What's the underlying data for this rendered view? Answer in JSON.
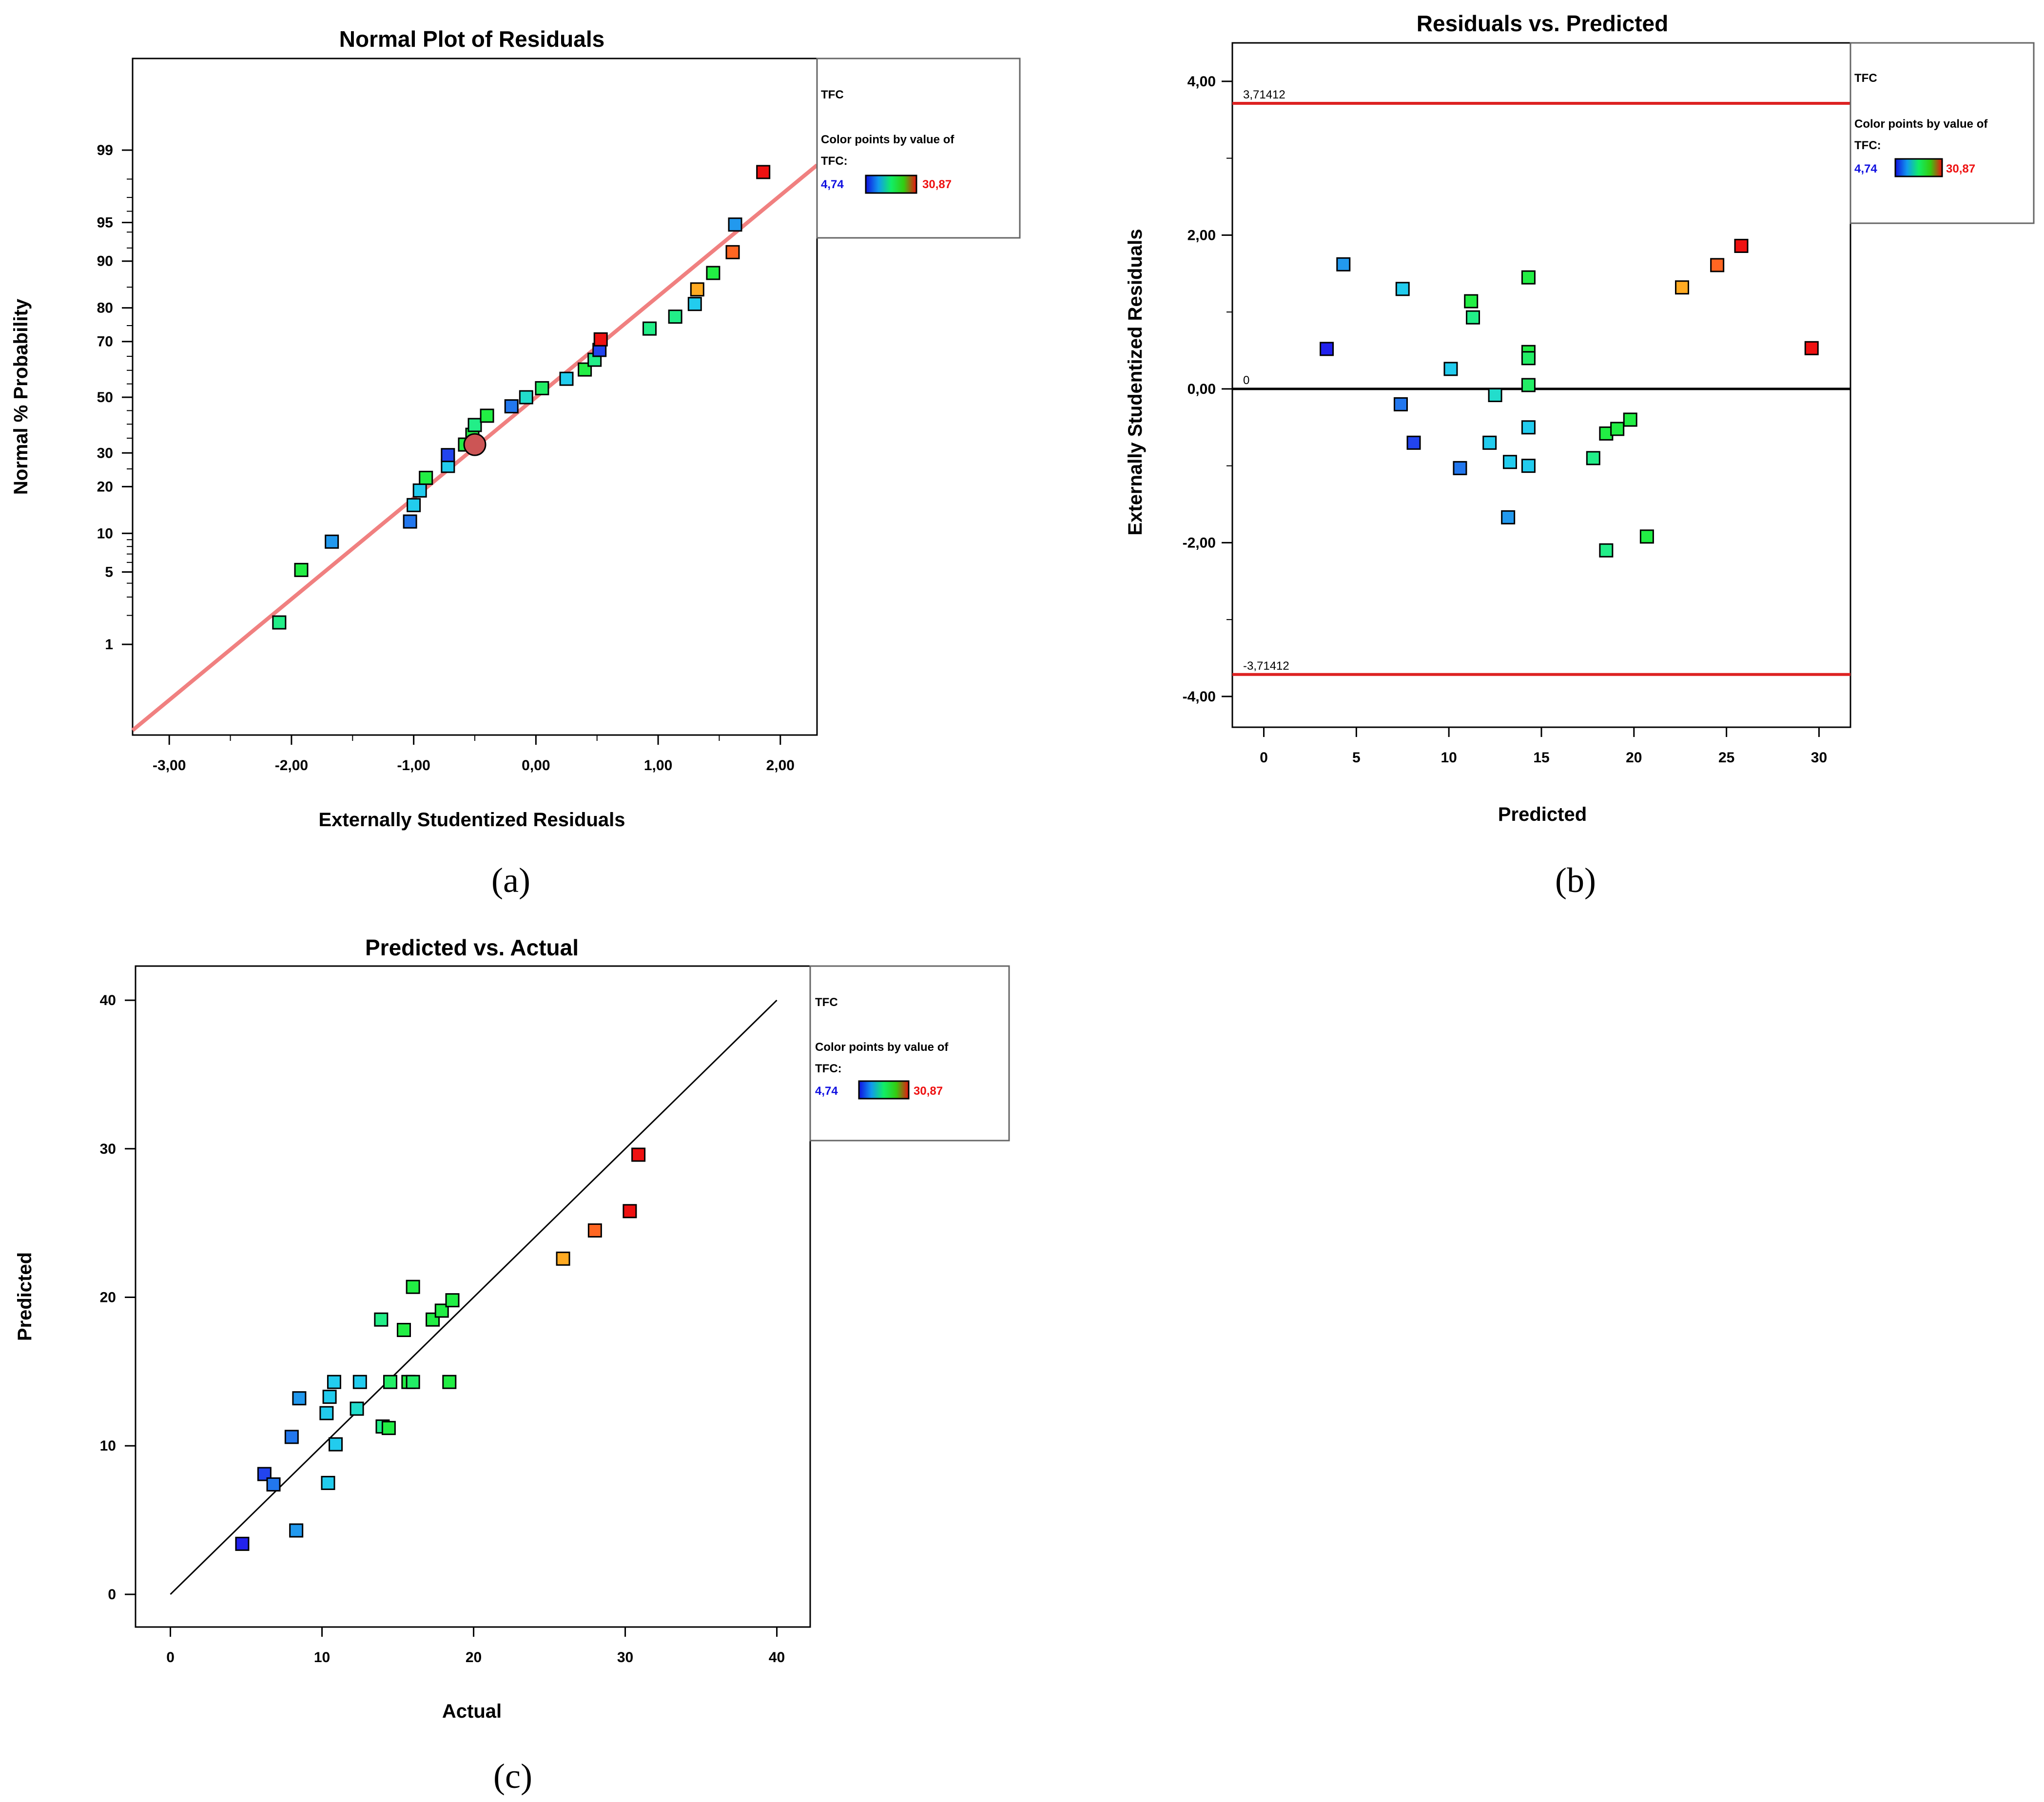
{
  "colors": {
    "low": "#1010e0",
    "high": "#ee1111",
    "fit_line": "#f08080",
    "limit_line": "#dd2222",
    "text": "#000000"
  },
  "legend": {
    "title": "TFC",
    "caption_line1": "Color points by value of",
    "caption_line2": "TFC:",
    "min_label": "4,74",
    "max_label": "30,87"
  },
  "panels": {
    "a": "(a)",
    "b": "(b)",
    "c": "(c)"
  },
  "chart_data": [
    {
      "id": "a",
      "type": "scatter",
      "title": "Normal Plot of Residuals",
      "xlabel": "Externally Studentized Residuals",
      "ylabel": "Normal % Probability",
      "xlim": [
        -3.3,
        2.3
      ],
      "xticks": [
        -3,
        -2,
        -1,
        0,
        1,
        2
      ],
      "xtick_labels": [
        "-3,00",
        "-2,00",
        "-1,00",
        "0,00",
        "1,00",
        "2,00"
      ],
      "yscale": "normal-probability",
      "yticks": [
        1,
        5,
        10,
        20,
        30,
        50,
        70,
        80,
        90,
        95,
        99
      ],
      "yticks_unlabeled": [
        2,
        3,
        4,
        6,
        7,
        8,
        9,
        25,
        35,
        40,
        45,
        55,
        60,
        65,
        75,
        85,
        92,
        94,
        96,
        97,
        98
      ],
      "fit_line": {
        "x": [
          -3.3,
          2.3
        ]
      },
      "points": [
        {
          "x": -2.1,
          "y": 1.7,
          "c": "#22ee88"
        },
        {
          "x": -1.92,
          "y": 5.2,
          "c": "#22ee44"
        },
        {
          "x": -1.67,
          "y": 8.7,
          "c": "#2299ee"
        },
        {
          "x": -1.03,
          "y": 12.1,
          "c": "#2277ee"
        },
        {
          "x": -1.0,
          "y": 15.5,
          "c": "#22ccee"
        },
        {
          "x": -0.95,
          "y": 19.0,
          "c": "#22ccee"
        },
        {
          "x": -0.9,
          "y": 22.4,
          "c": "#22ee44"
        },
        {
          "x": -0.72,
          "y": 25.9,
          "c": "#22ccee"
        },
        {
          "x": -0.72,
          "y": 29.3,
          "c": "#2244ee"
        },
        {
          "x": -0.58,
          "y": 32.8,
          "c": "#22ee44"
        },
        {
          "x": -0.52,
          "y": 36.2,
          "c": "#22ee44"
        },
        {
          "x": -0.5,
          "y": 39.7,
          "c": "#22ee88"
        },
        {
          "x": -0.4,
          "y": 43.1,
          "c": "#22ee44"
        },
        {
          "x": -0.2,
          "y": 46.6,
          "c": "#2277ee"
        },
        {
          "x": -0.08,
          "y": 50.0,
          "c": "#22ddcc"
        },
        {
          "x": 0.05,
          "y": 53.4,
          "c": "#22ee66"
        },
        {
          "x": 0.25,
          "y": 56.9,
          "c": "#22ccee"
        },
        {
          "x": 0.4,
          "y": 60.3,
          "c": "#22ee44"
        },
        {
          "x": 0.48,
          "y": 63.8,
          "c": "#22ee88"
        },
        {
          "x": 0.52,
          "y": 67.2,
          "c": "#2244ee"
        },
        {
          "x": 0.53,
          "y": 70.7,
          "c": "#ee1111"
        },
        {
          "x": 0.93,
          "y": 74.1,
          "c": "#22ee88"
        },
        {
          "x": 1.14,
          "y": 77.6,
          "c": "#22ee88"
        },
        {
          "x": 1.3,
          "y": 81.0,
          "c": "#22ccee"
        },
        {
          "x": 1.32,
          "y": 84.5,
          "c": "#ffaa22"
        },
        {
          "x": 1.45,
          "y": 87.9,
          "c": "#22ee44"
        },
        {
          "x": 1.61,
          "y": 91.4,
          "c": "#ff6622"
        },
        {
          "x": 1.63,
          "y": 94.8,
          "c": "#2299ee"
        },
        {
          "x": 1.86,
          "y": 98.3,
          "c": "#ee1111"
        }
      ],
      "highlight": {
        "x": -0.5,
        "y": 32.8,
        "c": "#cc5555"
      }
    },
    {
      "id": "b",
      "type": "scatter",
      "title": "Residuals vs. Predicted",
      "xlabel": "Predicted",
      "ylabel": "Externally Studentized Residuals",
      "xlim": [
        -1.7,
        31.7
      ],
      "ylim": [
        -4.4,
        4.5
      ],
      "xticks": [
        0,
        5,
        10,
        15,
        20,
        25,
        30
      ],
      "xtick_labels": [
        "0",
        "5",
        "10",
        "15",
        "20",
        "25",
        "30"
      ],
      "yticks": [
        -4,
        -2,
        0,
        2,
        4
      ],
      "ytick_labels": [
        "-4,00",
        "-2,00",
        "0,00",
        "2,00",
        "4,00"
      ],
      "limits": [
        3.71412,
        -3.71412
      ],
      "limit_labels": [
        "3,71412",
        "-3,71412"
      ],
      "zero_label": "0",
      "points": [
        {
          "x": 3.4,
          "y": 0.52,
          "c": "#2222ee"
        },
        {
          "x": 4.3,
          "y": 1.62,
          "c": "#2299ee"
        },
        {
          "x": 7.4,
          "y": -0.2,
          "c": "#2277ee"
        },
        {
          "x": 7.5,
          "y": 1.3,
          "c": "#22ccee"
        },
        {
          "x": 8.1,
          "y": -0.7,
          "c": "#2244ee"
        },
        {
          "x": 10.1,
          "y": 0.26,
          "c": "#22ccee"
        },
        {
          "x": 10.6,
          "y": -1.03,
          "c": "#2277ee"
        },
        {
          "x": 11.2,
          "y": 1.14,
          "c": "#22ee44"
        },
        {
          "x": 11.3,
          "y": 0.93,
          "c": "#22ee88"
        },
        {
          "x": 12.2,
          "y": -0.7,
          "c": "#22ccee"
        },
        {
          "x": 12.5,
          "y": -0.08,
          "c": "#22ddcc"
        },
        {
          "x": 13.2,
          "y": -1.67,
          "c": "#2299ee"
        },
        {
          "x": 13.3,
          "y": -0.95,
          "c": "#22ccee"
        },
        {
          "x": 14.3,
          "y": 1.45,
          "c": "#22ee44"
        },
        {
          "x": 14.3,
          "y": 0.48,
          "c": "#22ee44"
        },
        {
          "x": 14.3,
          "y": 0.4,
          "c": "#22ee66"
        },
        {
          "x": 14.3,
          "y": 0.05,
          "c": "#22ee66"
        },
        {
          "x": 14.3,
          "y": -0.5,
          "c": "#22ccee"
        },
        {
          "x": 14.3,
          "y": -1.0,
          "c": "#22ccee"
        },
        {
          "x": 17.8,
          "y": -0.9,
          "c": "#22ee88"
        },
        {
          "x": 18.5,
          "y": -0.58,
          "c": "#22ee44"
        },
        {
          "x": 18.5,
          "y": -2.1,
          "c": "#22ee88"
        },
        {
          "x": 19.1,
          "y": -0.52,
          "c": "#22ee44"
        },
        {
          "x": 19.8,
          "y": -0.4,
          "c": "#22ee44"
        },
        {
          "x": 20.7,
          "y": -1.92,
          "c": "#22ee44"
        },
        {
          "x": 22.6,
          "y": 1.32,
          "c": "#ffaa22"
        },
        {
          "x": 24.5,
          "y": 1.61,
          "c": "#ff6622"
        },
        {
          "x": 25.8,
          "y": 1.86,
          "c": "#ee1111"
        },
        {
          "x": 29.6,
          "y": 0.53,
          "c": "#ee1111"
        }
      ]
    },
    {
      "id": "c",
      "type": "scatter",
      "title": "Predicted vs. Actual",
      "xlabel": "Actual",
      "ylabel": "Predicted",
      "xlim": [
        -2.3,
        42.2
      ],
      "ylim": [
        -2.2,
        42.3
      ],
      "xticks": [
        0,
        10,
        20,
        30,
        40
      ],
      "xtick_labels": [
        "0",
        "10",
        "20",
        "30",
        "40"
      ],
      "yticks": [
        0,
        10,
        20,
        30,
        40
      ],
      "ytick_labels": [
        "0",
        "10",
        "20",
        "30",
        "40"
      ],
      "diagonal": [
        0,
        40
      ],
      "points": [
        {
          "x": 4.74,
          "y": 3.4,
          "c": "#2222ee"
        },
        {
          "x": 6.2,
          "y": 8.1,
          "c": "#2244ee"
        },
        {
          "x": 6.8,
          "y": 7.4,
          "c": "#2277ee"
        },
        {
          "x": 8.0,
          "y": 10.6,
          "c": "#2277ee"
        },
        {
          "x": 8.3,
          "y": 4.3,
          "c": "#2299ee"
        },
        {
          "x": 8.5,
          "y": 13.2,
          "c": "#2299ee"
        },
        {
          "x": 10.3,
          "y": 12.2,
          "c": "#22ccee"
        },
        {
          "x": 10.4,
          "y": 7.5,
          "c": "#22ccee"
        },
        {
          "x": 10.5,
          "y": 13.3,
          "c": "#22ccee"
        },
        {
          "x": 10.8,
          "y": 14.3,
          "c": "#22ccee"
        },
        {
          "x": 10.9,
          "y": 10.1,
          "c": "#22ccee"
        },
        {
          "x": 12.3,
          "y": 12.5,
          "c": "#22ddcc"
        },
        {
          "x": 12.5,
          "y": 14.3,
          "c": "#22ccee"
        },
        {
          "x": 13.9,
          "y": 18.5,
          "c": "#22ee88"
        },
        {
          "x": 14.0,
          "y": 11.3,
          "c": "#22ee88"
        },
        {
          "x": 14.4,
          "y": 11.2,
          "c": "#22ee44"
        },
        {
          "x": 14.5,
          "y": 14.3,
          "c": "#22ee66"
        },
        {
          "x": 15.4,
          "y": 17.8,
          "c": "#22ee44"
        },
        {
          "x": 15.7,
          "y": 14.3,
          "c": "#22ee44"
        },
        {
          "x": 16.0,
          "y": 14.3,
          "c": "#22ee66"
        },
        {
          "x": 16.0,
          "y": 20.7,
          "c": "#22ee44"
        },
        {
          "x": 17.3,
          "y": 18.5,
          "c": "#22ee44"
        },
        {
          "x": 17.9,
          "y": 19.1,
          "c": "#22ee44"
        },
        {
          "x": 18.4,
          "y": 14.3,
          "c": "#22ee44"
        },
        {
          "x": 18.6,
          "y": 19.8,
          "c": "#22ee44"
        },
        {
          "x": 25.9,
          "y": 22.6,
          "c": "#ffaa22"
        },
        {
          "x": 28.0,
          "y": 24.5,
          "c": "#ff6622"
        },
        {
          "x": 30.3,
          "y": 25.8,
          "c": "#ee1111"
        },
        {
          "x": 30.87,
          "y": 29.6,
          "c": "#ee1111"
        }
      ]
    }
  ]
}
